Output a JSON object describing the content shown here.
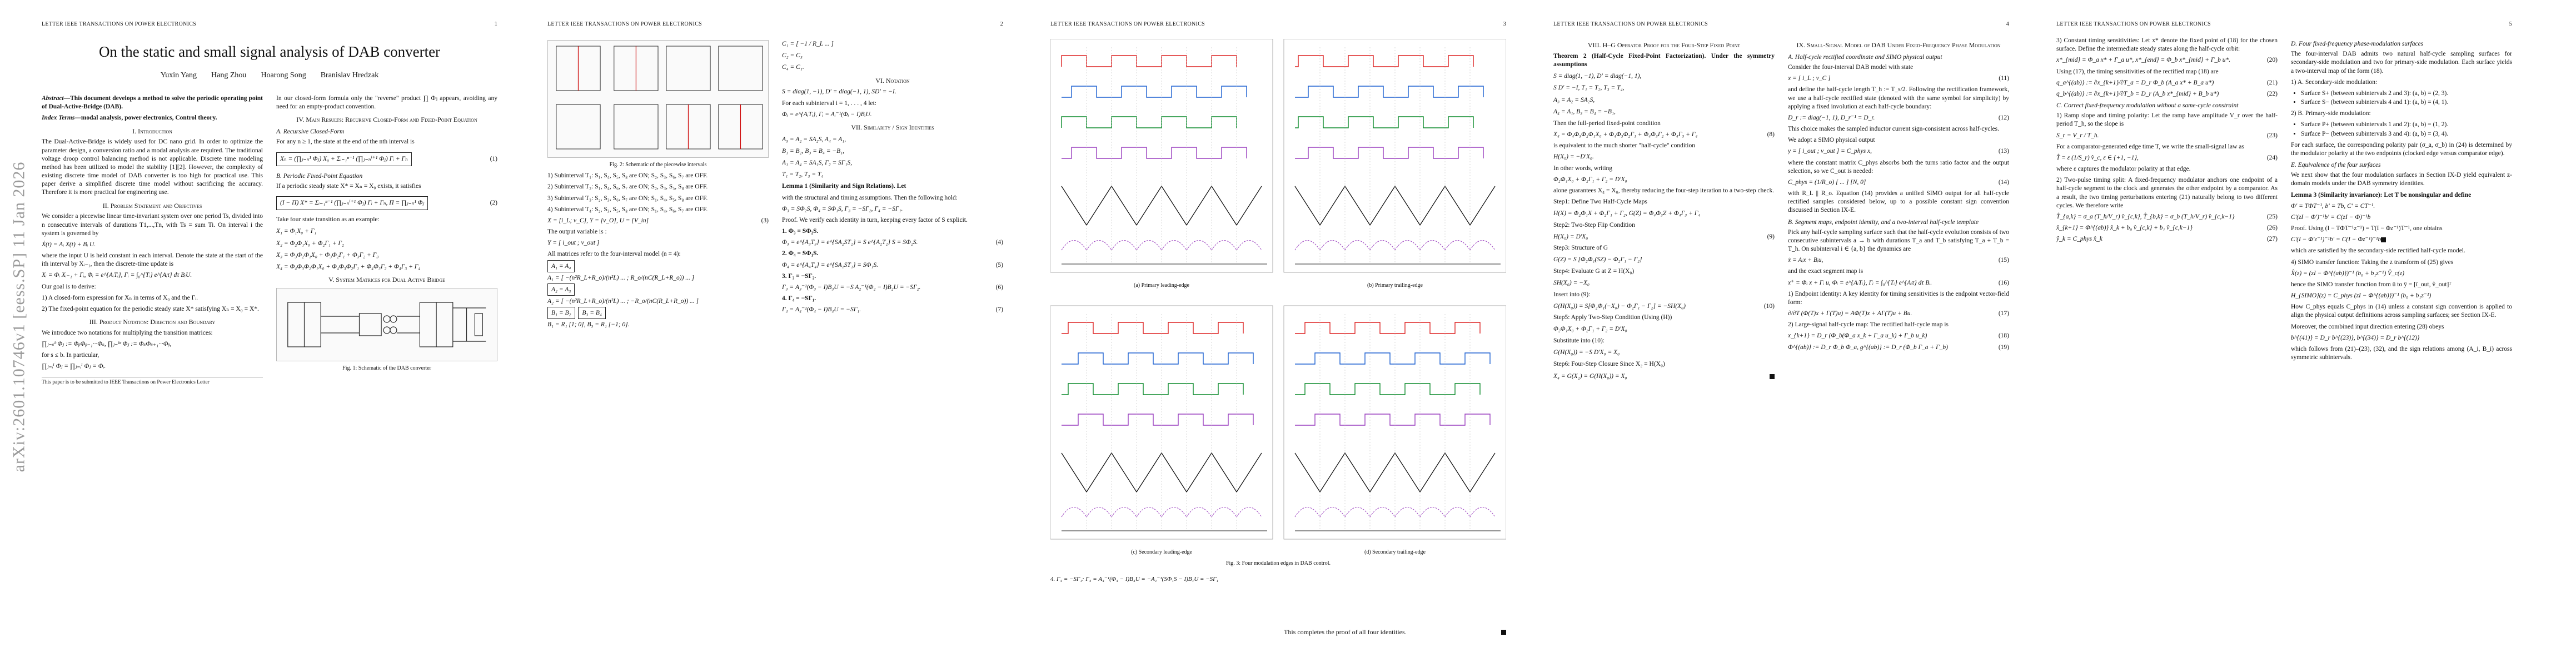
{
  "arxiv_stamp": "arXiv:2601.10746v1  [eess.SP]  11 Jan 2026",
  "journal_header": "LETTER IEEE TRANSACTIONS ON POWER ELECTRONICS",
  "pages": [
    {
      "number": "1",
      "title": "On the static and small signal analysis of DAB converter",
      "authors": [
        "Yuxin Yang",
        "Hang Zhou",
        "Hoarong Song",
        "Branislav Hredzak"
      ],
      "abstract_label": "Abstract—",
      "abstract": "This document develops a method to solve the periodic operating point of Dual-Active-Bridge (DAB).",
      "index_label": "Index Terms—",
      "index_terms": "modal analysis, power electronics, Control theory.",
      "sections": {
        "intro": "I. Introduction",
        "problem": "II. Problem Statement and Objectives",
        "product": "III. Product Notation: Direction and Boundary",
        "main": "IV. Main Results: Recursive Closed-Form and Fixed-Point Equation",
        "sub_a": "A. Recursive Closed-Form",
        "sub_b": "B. Periodic Fixed-Point Equation",
        "system": "V. System Matrices for Dual Active Bridge"
      },
      "intro_text": "The Dual-Active-Bridge is widely used for DC nano grid. In order to optimize the parameter design, a conversion ratio and a modal analysis are required. The traditional voltage droop control balancing method is not applicable. Discrete time modeling method has been utilized to model the stability [1][2]. However, the complexity of existing discrete time model of DAB converter is too high for practical use. This paper derive a simplified discrete time model without sacrificing the accuracy. Therefore it is more practical for engineering use.",
      "problem_text": "We consider a piecewise linear time-invariant system over one period Ts, divided into n consecutive intervals of durations T1,...,Tn, with Ts = sum Ti. On interval i the system is governed by",
      "eq_state": "Ẋ(t) = Aᵢ X(t) + Bᵢ U.",
      "problem_text2": "where the input U is held constant in each interval. Denote the state at the start of the ith interval by Xᵢ₋₁, then the discrete-time update is",
      "eq_update": "Xᵢ = Φᵢ Xᵢ₋₁ + Γᵢ,   Φᵢ = e^{AᵢTᵢ},   Γᵢ = ∫₀^{Tᵢ} e^{Aᵢτ} dτ BᵢU.",
      "goals_intro": "Our goal is to derive:",
      "goals": [
        "1) A closed-form expression for Xₙ in terms of X₀ and the Γᵢ.",
        "2) The fixed-point equation for the periodic steady state X* satisfying Xₙ = X₀ = X*."
      ],
      "product_text": "We introduce two notations for multiplying the transition matrices:",
      "product_text2": "for s ≤ b. In particular,",
      "footnote": "This paper is to be submitted to IEEE Transactions on Power Electronics Letter",
      "col2_intro": "In our closed-form formula only the \"reverse\" product ∏ Φⱼ appears, avoiding any need for an empty-product convention.",
      "sub_a_text": "For any n ≥ 1, the state at the end of the nth interval is",
      "eq1_num": "(1)",
      "sub_b_text": "If a periodic steady state X* = Xₙ = X₀ exists, it satisfies",
      "eq2_num": "(2)",
      "take_text": "Take four state transition as an example:",
      "example_lines": [
        "X₁ = Φ₁X₀ + Γ₁",
        "X₂ = Φ₂Φ₁X₀ + Φ₂Γ₁ + Γ₂",
        "X₃ = Φ₃Φ₂Φ₁X₀ + Φ₃Φ₂Γ₁ + Φ₃Γ₂ + Γ₃",
        "X₄ = Φ₄Φ₃Φ₂Φ₁X₀ + Φ₄Φ₃Φ₂Γ₁ + Φ₄Φ₃Γ₂ + Φ₄Γ₃ + Γ₄"
      ],
      "fig1_caption": "Fig. 1: Schematic of the DAB converter"
    },
    {
      "number": "2",
      "fig2_caption": "Fig. 2: Schematic of the piecewise intervals",
      "subintervals": [
        "1) Subinterval T₁: S₁, S₄, S₅, S₈ are ON; S₂, S₃, S₆, S₇ are OFF.",
        "2) Subinterval T₂: S₁, S₄, S₆, S₇ are ON; S₂, S₃, S₅, S₈ are OFF.",
        "3) Subinterval T₃: S₂, S₃, S₆, S₇ are ON; S₁, S₄, S₅, S₈ are OFF.",
        "4) Subinterval T₄: S₂, S₃, S₅, S₈ are ON; S₁, S₄, S₆, S₇ are OFF."
      ],
      "vars_line": "X = [i_L; v_C],   Y = [v_O],   U = [V_in]",
      "eq3_num": "(3)",
      "output_text": "The output variable is :",
      "all_matrices": "All matrices refer to the four-interval model (n = 4):",
      "a1_label": "A₁ = A₄",
      "a2_label": "A₂ = A₃",
      "b_labels": [
        "B₁ = B₂",
        "B₃ = B₄"
      ],
      "b_values": "B₁ = R₁ [1; 0],   B₃ = R₁ [−1; 0].",
      "c_lines": [
        "C₁ = [ −1 / R_L ... ]",
        "C₂ = C₃",
        "C₄ = C₁."
      ],
      "sec_notation": "VI. Notation",
      "notation_line": "S = diag(1, −1),   D' = diag(−1, 1),   SD' = −I.",
      "notation_text": "For each subinterval i = 1, . . . , 4 let:",
      "sec_similarity": "VII. Similarity / Sign Identities",
      "identities": [
        "A₃ = A₂ = SA₂S,   A₄ = A₁,",
        "B₁ = B₂,   B₃ = B₄ = −B₁,",
        "A₁ = A₄ = SA₁S,   Γ₂ = SΓ₁S,",
        "T₁ = T₂,   T₃ = T₄"
      ],
      "lemma1": "Lemma 1 (Similarity and Sign Relations). Let",
      "lemma1_text": "with the structural and timing assumptions. Then the following hold:",
      "lemma1_result": "Φ₃ = SΦ₂S,   Φ₄ = SΦ₁S,   Γ₃ = −SΓ₂,   Γ₄ = −SΓ₁.",
      "proof_text": "Proof. We verify each identity in turn, keeping every factor of S explicit.",
      "proof_items": [
        "1. Φ₃ = SΦ₂S.",
        "2. Φ₄ = SΦ₁S.",
        "3. Γ₃ = −SΓ₂.",
        "4. Γ₄ = −SΓ₁."
      ],
      "eq_nums": [
        "(4)",
        "(5)",
        "(6)",
        "(7)"
      ]
    },
    {
      "number": "3",
      "subcaptions": [
        "(a) Primary leading-edge",
        "(b) Primary trailing-edge",
        "(c) Secondary leading-edge",
        "(d) Secondary trailing-edge"
      ],
      "fig3_caption": "Fig. 3: Four modulation edges in DAB control.",
      "footer_text": "This completes the proof of all four identities."
    },
    {
      "number": "4",
      "sec_operator": "VIII. H–G Operator Proof for the Four-Step Fixed Point",
      "theorem": "Theorem 2 (Half-Cycle Fixed-Point Factorization). Under the symmetry assumptions",
      "theorem_lines": [
        "S = diag(1, −1),   D' = diag(−1, 1),",
        "S D' = −I,   T₁ = T₂,   T₃ = T₄,",
        "A₃ = A₂ = SA₂S,",
        "A₄ = A₁,   B₃ = B₄ = −B₁,"
      ],
      "half_cycle": "Then the full-period fixed-point condition",
      "equiv": "is equivalent to the much shorter \"half-cycle\" condition",
      "words": "In other words, writing",
      "guarantee": "alone guarantees X₄ = X₀, thereby reducing the four-step iteration to a two-step check.",
      "proof_steps": [
        "Step1: Define Two Half-Cycle Maps",
        "Step2: Two-Step Flip Condition",
        "Step3: Structure of G",
        "Step4: Evaluate G at Z = H(X₀)",
        "Step5: Apply Two-Step Condition (Using (H))",
        "Step6: Four-Step Closure Since X₂ = H(X₀)"
      ],
      "insert_text": "Insert into (9):",
      "substitute_text": "Substitute into (10):",
      "eq_nums": [
        "(8)",
        "(9)",
        "(10)"
      ],
      "sec_small": "IX. Small-Signal Model of DAB Under Fixed-Frequency Phase Modulation",
      "sub_a": "A. Half-cycle rectified coordinate and SIMO physical output",
      "sub_a_text": "Consider the four-interval DAB model with state",
      "rect_text": "and define the half-cycle length T_h := T_s/2. Following the rectification framework, we use a half-cycle rectified state (denoted with the same symbol for simplicity) by applying a fixed involution at each half-cycle boundary:",
      "choice_text": "This choice makes the sampled inductor current sign-consistent across half-cycles.",
      "simo_text": "We adopt a SIMO physical output",
      "const_text": "where the constant matrix C_phys absorbs both the turns ratio factor and the output selection, so we C_out is needed:",
      "with_text": "with R_L || R_o. Equation (14) provides a unified SIMO output for all half-cycle rectified samples considered below, up to a possible constant sign convention discussed in Section IX-E.",
      "sub_b": "B. Segment maps, endpoint identity, and a two-interval half-cycle template",
      "sub_b_text": "Pick any half-cycle sampling surface such that the half-cycle evolution consists of two consecutive subintervals a → b with durations T_a and T_b satisfying T_a + T_b = T_h. On subinterval i ∈ {a, b} the dynamics are",
      "exact_text": "and the exact segment map is",
      "endpoint_text": "1) Endpoint identity: A key identity for timing sensitivities is the endpoint vector-field form:",
      "large_text": "2) Large-signal half-cycle map: The rectified half-cycle map is",
      "eq_nums2": [
        "(11)",
        "(12)",
        "(13)",
        "(14)",
        "(15)",
        "(16)",
        "(17)",
        "(18)",
        "(19)"
      ]
    },
    {
      "number": "5",
      "col1_text": "3) Constant timing sensitivities: Let x* denote the fixed point of (18) for the chosen surface. Define the intermediate steady states along the half-cycle orbit:",
      "timing_text": "Using (17), the timing sensitivities of the rectified map (18) are",
      "sub_c": "C. Correct fixed-frequency modulation without a same-cycle constraint",
      "ramp_text": "1) Ramp slope and timing polarity: Let the ramp have amplitude V_r over the half-period T_h, so the slope is",
      "comparator_text": "For a comparator-generated edge time T, we write the small-signal law as",
      "epsilon_text": "where ε captures the modulator polarity at that edge.",
      "linear_text": "2) Two-pulse timing split: A fixed-frequency modulator anchors one endpoint of a half-cycle segment to the clock and generates the other endpoint by a comparator. As a result, the two timing perturbations entering (21) naturally belong to two different cycles. We therefore write",
      "eq_nums": [
        "(20)",
        "(21)",
        "(22)",
        "(23)",
        "(24)",
        "(25)",
        "(26)",
        "(27)"
      ],
      "col2_sub_d": "D. Four fixed-frequency phase-modulation surfaces",
      "col2_text": "The four-interval DAB admits two natural half-cycle sampling surfaces for secondary-side modulation and two for primary-side modulation. Each surface yields a two-interval map of the form (18).",
      "surfaces_label": "1) A. Secondary-side modulation:",
      "surfaces": [
        "Surface S+ (between subintervals 2 and 3): (a, b) = (2, 3).",
        "Surface S− (between subintervals 4 and 1): (a, b) = (4, 1)."
      ],
      "primary_label": "2) B. Primary-side modulation:",
      "primary_surfaces": [
        "Surface P+ (between subintervals 1 and 2): (a, b) = (1, 2).",
        "Surface P− (between subintervals 3 and 4): (a, b) = (3, 4)."
      ],
      "polarity_text": "For each surface, the corresponding polarity pair (σ_a, σ_b) in (24) is determined by the modulator polarity at the two endpoints (clocked edge versus comparator edge).",
      "sub_e": "E. Equivalence of the four surfaces",
      "equiv_text": "We next show that the four modulation surfaces in Section IX-D yield equivalent z-domain models under the DAB symmetry identities.",
      "lemma3": "Lemma 3 (Similarity invariance): Let T be nonsingular and define",
      "proof_text": "Proof. Using (I − TΦT⁻¹z⁻¹) = T(I − Φz⁻¹)T⁻¹, one obtains",
      "which_text": "which are satisfied by the secondary-side rectified half-cycle model.",
      "simo_tf": "4) SIMO transfer function: Taking the z transform of (25) gives",
      "hence_text": "hence the SIMO transfer function from û to ŷ = [î_out, v̂_out]ᵀ",
      "how_text": "How C_phys equals C_phys in (14) unless a constant sign convention is applied to align the physical output definitions across sampling surfaces; see Section IX-E.",
      "moreover_text": "Moreover, the combined input direction entering (28) obeys",
      "follows_text": "which follows from (21)–(23), (32), and the sign relations among (A_i, B_i) across symmetric subintervals."
    }
  ]
}
